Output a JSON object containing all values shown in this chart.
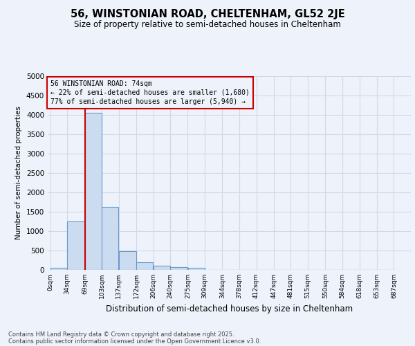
{
  "title_line1": "56, WINSTONIAN ROAD, CHELTENHAM, GL52 2JE",
  "title_line2": "Size of property relative to semi-detached houses in Cheltenham",
  "xlabel": "Distribution of semi-detached houses by size in Cheltenham",
  "ylabel": "Number of semi-detached properties",
  "bin_labels": [
    "0sqm",
    "34sqm",
    "69sqm",
    "103sqm",
    "137sqm",
    "172sqm",
    "206sqm",
    "240sqm",
    "275sqm",
    "309sqm",
    "344sqm",
    "378sqm",
    "412sqm",
    "447sqm",
    "481sqm",
    "515sqm",
    "550sqm",
    "584sqm",
    "618sqm",
    "653sqm",
    "687sqm"
  ],
  "bar_values": [
    50,
    1250,
    4050,
    1630,
    480,
    200,
    110,
    70,
    60,
    0,
    0,
    0,
    0,
    0,
    0,
    0,
    0,
    0,
    0,
    0
  ],
  "bar_color": "#ccdcf0",
  "bar_edgecolor": "#6699cc",
  "grid_color": "#d0d8e8",
  "background_color": "#eef2fa",
  "vline_x_bin": 2,
  "vline_color": "#cc0000",
  "annotation_title": "56 WINSTONIAN ROAD: 74sqm",
  "annotation_line1": "← 22% of semi-detached houses are smaller (1,680)",
  "annotation_line2": "77% of semi-detached houses are larger (5,940) →",
  "annotation_box_color": "#cc0000",
  "ylim": [
    0,
    5000
  ],
  "yticks": [
    0,
    500,
    1000,
    1500,
    2000,
    2500,
    3000,
    3500,
    4000,
    4500,
    5000
  ],
  "footer_line1": "Contains HM Land Registry data © Crown copyright and database right 2025.",
  "footer_line2": "Contains public sector information licensed under the Open Government Licence v3.0.",
  "bin_size": 34
}
